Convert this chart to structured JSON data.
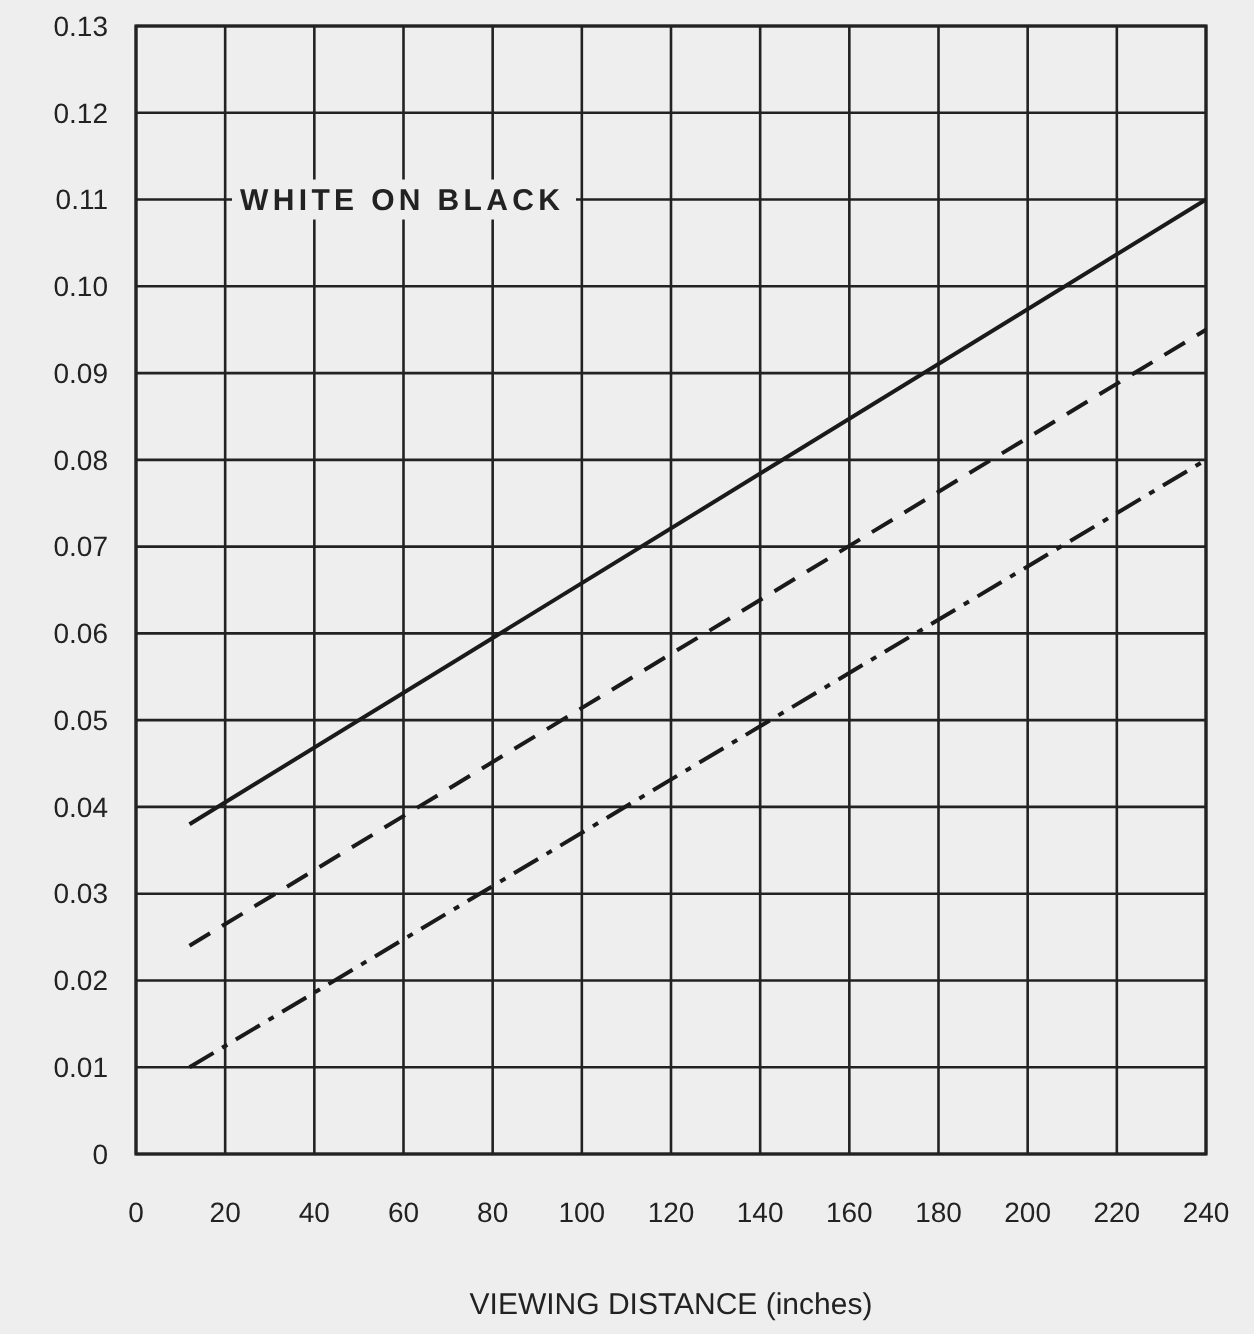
{
  "chart_data": {
    "type": "line",
    "xlabel": "VIEWING DISTANCE (inches)",
    "xlim": [
      0,
      240
    ],
    "xticks": [
      0,
      20,
      40,
      60,
      80,
      100,
      120,
      140,
      160,
      180,
      200,
      220,
      240
    ],
    "ylim": [
      0,
      0.13
    ],
    "yticks": [
      {
        "value": 0,
        "label": "0"
      },
      {
        "value": 0.01,
        "label": "0.01"
      },
      {
        "value": 0.02,
        "label": "0.02"
      },
      {
        "value": 0.03,
        "label": "0.03"
      },
      {
        "value": 0.04,
        "label": "0.04"
      },
      {
        "value": 0.05,
        "label": "0.05"
      },
      {
        "value": 0.06,
        "label": "0.06"
      },
      {
        "value": 0.07,
        "label": "0.07"
      },
      {
        "value": 0.08,
        "label": "0.08"
      },
      {
        "value": 0.09,
        "label": "0.09"
      },
      {
        "value": 0.1,
        "label": "0.10"
      },
      {
        "value": 0.11,
        "label": "0.11"
      },
      {
        "value": 0.12,
        "label": "0.12"
      },
      {
        "value": 0.13,
        "label": "0.13"
      }
    ],
    "grid": true,
    "marker": "none",
    "x": [
      12,
      240
    ],
    "series": [
      {
        "color": "#1a1a1a",
        "values": [
          0.038,
          0.11
        ],
        "line_style": "solid"
      },
      {
        "color": "#1a1a1a",
        "values": [
          0.024,
          0.095
        ],
        "line_style": "dashed"
      },
      {
        "color": "#1a1a1a",
        "values": [
          0.01,
          0.08
        ],
        "line_style": "dashdot"
      }
    ],
    "annotations": [
      "WHITE ON BLACK"
    ]
  }
}
